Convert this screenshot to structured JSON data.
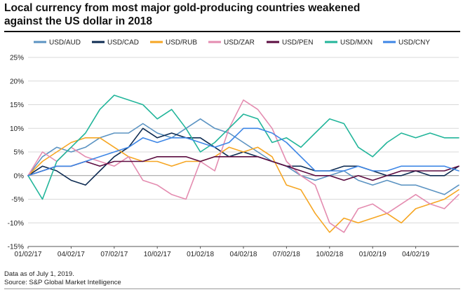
{
  "title_line1": "Local currency from most major gold-producing countries weakened",
  "title_line2": "against the US dollar in 2018",
  "footnote_line1": "Data as of July 1, 2019.",
  "footnote_line2": "Source: S&P Global Market Intelligence",
  "chart_data": {
    "type": "line",
    "title": "",
    "xlabel": "",
    "ylabel": "",
    "ylim": [
      -15,
      25
    ],
    "yticks": [
      -15,
      -10,
      -5,
      0,
      5,
      10,
      15,
      20,
      25
    ],
    "ytick_labels": [
      "-15%",
      "-10%",
      "-5%",
      "0%",
      "5%",
      "10%",
      "15%",
      "20%",
      "25%"
    ],
    "x_range": [
      "01/02/17",
      "07/01/19"
    ],
    "xtick_labels": [
      "01/02/17",
      "04/02/17",
      "07/02/17",
      "10/02/17",
      "01/02/18",
      "04/02/18",
      "07/02/18",
      "10/02/18",
      "01/02/19",
      "04/02/19"
    ],
    "grid": "horizontal",
    "legend_position": "top",
    "x_months": [
      0,
      1,
      2,
      3,
      4,
      5,
      6,
      7,
      8,
      9,
      10,
      11,
      12,
      13,
      14,
      15,
      16,
      17,
      18,
      19,
      20,
      21,
      22,
      23,
      24,
      25,
      26,
      27,
      28,
      29,
      30
    ],
    "series": [
      {
        "name": "USD/AUD",
        "color": "#5b93c2",
        "values": [
          0,
          4,
          6,
          5,
          6,
          8,
          9,
          9,
          11,
          9,
          8,
          10,
          12,
          10,
          9,
          7,
          5,
          3,
          2,
          0,
          -1,
          0,
          1,
          -1,
          -2,
          -1,
          -2,
          -2,
          -3,
          -4,
          -2
        ]
      },
      {
        "name": "USD/CAD",
        "color": "#0d2b52",
        "values": [
          0,
          2,
          1,
          -1,
          -2,
          1,
          4,
          6,
          10,
          8,
          9,
          8,
          8,
          6,
          4,
          5,
          4,
          3,
          2,
          2,
          1,
          1,
          2,
          2,
          1,
          0,
          0,
          1,
          0,
          0,
          2
        ]
      },
      {
        "name": "USD/RUB",
        "color": "#f6a623",
        "values": [
          0,
          3,
          5,
          7,
          8,
          8,
          6,
          4,
          3,
          3,
          2,
          3,
          3,
          4,
          6,
          5,
          6,
          4,
          -2,
          -3,
          -8,
          -12,
          -9,
          -10,
          -9,
          -8,
          -10,
          -7,
          -6,
          -5,
          -3
        ]
      },
      {
        "name": "USD/ZAR",
        "color": "#e48cb0",
        "values": [
          0,
          5,
          3,
          6,
          4,
          3,
          2,
          4,
          -1,
          -2,
          -4,
          -5,
          3,
          1,
          10,
          16,
          14,
          10,
          3,
          0,
          -2,
          -10,
          -12,
          -7,
          -6,
          -8,
          -6,
          -4,
          -6,
          -7,
          -4
        ]
      },
      {
        "name": "USD/PEN",
        "color": "#5b0c40",
        "values": [
          0,
          1,
          2,
          2,
          3,
          2,
          3,
          3,
          3,
          4,
          4,
          4,
          3,
          4,
          4,
          4,
          4,
          3,
          2,
          1,
          0,
          0,
          -1,
          0,
          -1,
          0,
          1,
          1,
          1,
          1,
          2
        ]
      },
      {
        "name": "USD/MXN",
        "color": "#22b59a",
        "values": [
          0,
          -5,
          3,
          6,
          9,
          14,
          17,
          16,
          15,
          12,
          14,
          10,
          5,
          7,
          10,
          13,
          12,
          7,
          8,
          6,
          9,
          12,
          11,
          6,
          4,
          7,
          9,
          8,
          9,
          8,
          8
        ]
      },
      {
        "name": "USD/CNY",
        "color": "#3d86e6",
        "values": [
          0,
          1,
          2,
          2,
          3,
          4,
          5,
          6,
          8,
          7,
          8,
          8,
          7,
          6,
          7,
          10,
          10,
          9,
          7,
          4,
          1,
          1,
          1,
          2,
          1,
          1,
          2,
          2,
          2,
          2,
          1
        ]
      }
    ]
  }
}
